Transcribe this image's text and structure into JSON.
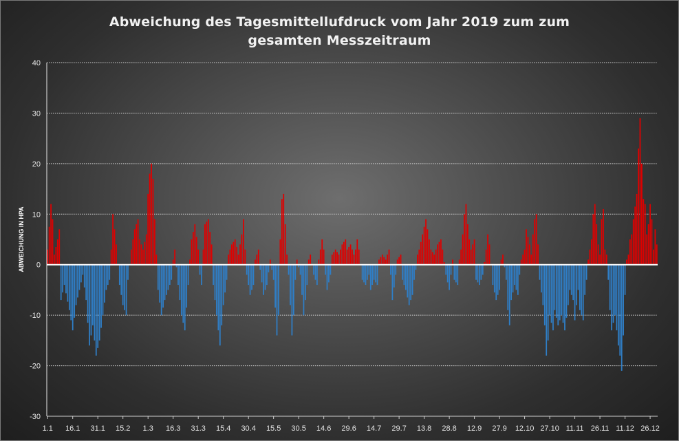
{
  "chart_data": {
    "type": "bar",
    "title": "Abweichung des Tagesmittellufdruck vom Jahr 2019 zum zum",
    "subtitle": "gesamten Messzeitraum",
    "xlabel": "",
    "ylabel": "ABWEICHUNG IN HPA",
    "ylim": [
      -30,
      40
    ],
    "yticks": [
      -30,
      -20,
      -10,
      0,
      10,
      20,
      30,
      40
    ],
    "grid": true,
    "legend": "none",
    "positive_color": "#e00000",
    "negative_color": "#2f7fc8",
    "x_ticks": [
      "1.1",
      "16.1",
      "31.1",
      "15.2",
      "1.3",
      "16.3",
      "31.3",
      "15.4",
      "30.4",
      "15.5",
      "30.5",
      "14.6",
      "29.6",
      "14.7",
      "29.7",
      "13.8",
      "28.8",
      "12.9",
      "27.9",
      "12.10",
      "27.10",
      "11.11",
      "26.11",
      "11.12",
      "26.12"
    ],
    "day_count": 365,
    "anchors": [
      [
        0,
        3
      ],
      [
        2,
        12
      ],
      [
        3,
        9
      ],
      [
        4,
        2
      ],
      [
        6,
        5
      ],
      [
        7,
        7
      ],
      [
        8,
        -7
      ],
      [
        10,
        -4
      ],
      [
        13,
        -9
      ],
      [
        15,
        -13
      ],
      [
        17,
        -8
      ],
      [
        19,
        -5
      ],
      [
        21,
        -2
      ],
      [
        23,
        -7
      ],
      [
        25,
        -16
      ],
      [
        27,
        -12
      ],
      [
        29,
        -18
      ],
      [
        31,
        -15
      ],
      [
        33,
        -10
      ],
      [
        35,
        -5
      ],
      [
        37,
        -3
      ],
      [
        38,
        3
      ],
      [
        39,
        10
      ],
      [
        41,
        4
      ],
      [
        43,
        -4
      ],
      [
        45,
        -8
      ],
      [
        47,
        -10
      ],
      [
        48,
        -3
      ],
      [
        50,
        3
      ],
      [
        52,
        7
      ],
      [
        54,
        9
      ],
      [
        55,
        5
      ],
      [
        57,
        3
      ],
      [
        59,
        6
      ],
      [
        60,
        14
      ],
      [
        61,
        18
      ],
      [
        62,
        20
      ],
      [
        63,
        17
      ],
      [
        64,
        9
      ],
      [
        65,
        2
      ],
      [
        66,
        -5
      ],
      [
        68,
        -10
      ],
      [
        70,
        -7
      ],
      [
        72,
        -5
      ],
      [
        74,
        -3
      ],
      [
        75,
        1
      ],
      [
        76,
        3
      ],
      [
        78,
        -4
      ],
      [
        80,
        -10
      ],
      [
        82,
        -13
      ],
      [
        84,
        -4
      ],
      [
        85,
        1
      ],
      [
        86,
        5
      ],
      [
        88,
        8
      ],
      [
        90,
        3
      ],
      [
        91,
        -2
      ],
      [
        92,
        -4
      ],
      [
        93,
        3
      ],
      [
        94,
        8
      ],
      [
        96,
        9
      ],
      [
        98,
        4
      ],
      [
        99,
        -4
      ],
      [
        101,
        -10
      ],
      [
        103,
        -16
      ],
      [
        105,
        -8
      ],
      [
        107,
        -3
      ],
      [
        108,
        2
      ],
      [
        110,
        4
      ],
      [
        112,
        5
      ],
      [
        114,
        2
      ],
      [
        116,
        6
      ],
      [
        117,
        9
      ],
      [
        118,
        3
      ],
      [
        119,
        -2
      ],
      [
        121,
        -6
      ],
      [
        123,
        -4
      ],
      [
        124,
        1
      ],
      [
        126,
        3
      ],
      [
        127,
        -1
      ],
      [
        129,
        -6
      ],
      [
        131,
        -4
      ],
      [
        133,
        1
      ],
      [
        135,
        -3
      ],
      [
        137,
        -14
      ],
      [
        138,
        -10
      ],
      [
        139,
        5
      ],
      [
        140,
        13
      ],
      [
        141,
        14
      ],
      [
        142,
        8
      ],
      [
        143,
        2
      ],
      [
        144,
        -2
      ],
      [
        145,
        -8
      ],
      [
        146,
        -14
      ],
      [
        147,
        -10
      ],
      [
        148,
        -3
      ],
      [
        149,
        1
      ],
      [
        151,
        -2
      ],
      [
        153,
        -10
      ],
      [
        155,
        -4
      ],
      [
        156,
        1
      ],
      [
        157,
        2
      ],
      [
        159,
        -2
      ],
      [
        161,
        -4
      ],
      [
        162,
        1
      ],
      [
        164,
        5
      ],
      [
        165,
        3
      ],
      [
        166,
        -2
      ],
      [
        167,
        -5
      ],
      [
        169,
        -2
      ],
      [
        170,
        2
      ],
      [
        172,
        3
      ],
      [
        174,
        2
      ],
      [
        176,
        4
      ],
      [
        178,
        5
      ],
      [
        179,
        3
      ],
      [
        181,
        4
      ],
      [
        183,
        2
      ],
      [
        184,
        3
      ],
      [
        185,
        5
      ],
      [
        186,
        3
      ],
      [
        188,
        -3
      ],
      [
        190,
        -4
      ],
      [
        192,
        -2
      ],
      [
        193,
        -5
      ],
      [
        195,
        -3
      ],
      [
        197,
        -4
      ],
      [
        198,
        1
      ],
      [
        200,
        2
      ],
      [
        202,
        1
      ],
      [
        204,
        3
      ],
      [
        206,
        -7
      ],
      [
        208,
        -2
      ],
      [
        209,
        1
      ],
      [
        211,
        2
      ],
      [
        212,
        -3
      ],
      [
        214,
        -5
      ],
      [
        216,
        -8
      ],
      [
        218,
        -6
      ],
      [
        219,
        -3
      ],
      [
        220,
        -1
      ],
      [
        221,
        2
      ],
      [
        222,
        3
      ],
      [
        224,
        6
      ],
      [
        226,
        9
      ],
      [
        227,
        7
      ],
      [
        228,
        5
      ],
      [
        229,
        3
      ],
      [
        231,
        2
      ],
      [
        233,
        4
      ],
      [
        235,
        5
      ],
      [
        236,
        3
      ],
      [
        238,
        -2
      ],
      [
        240,
        -5
      ],
      [
        241,
        -2
      ],
      [
        242,
        1
      ],
      [
        243,
        -3
      ],
      [
        245,
        -4
      ],
      [
        246,
        1
      ],
      [
        247,
        3
      ],
      [
        248,
        6
      ],
      [
        249,
        10
      ],
      [
        250,
        12
      ],
      [
        251,
        8
      ],
      [
        252,
        5
      ],
      [
        253,
        3
      ],
      [
        255,
        5
      ],
      [
        256,
        -3
      ],
      [
        258,
        -4
      ],
      [
        260,
        -2
      ],
      [
        262,
        3
      ],
      [
        263,
        6
      ],
      [
        264,
        4
      ],
      [
        266,
        -4
      ],
      [
        268,
        -7
      ],
      [
        270,
        -5
      ],
      [
        271,
        1
      ],
      [
        272,
        2
      ],
      [
        274,
        -3
      ],
      [
        275,
        -9
      ],
      [
        276,
        -12
      ],
      [
        277,
        -7
      ],
      [
        279,
        -4
      ],
      [
        281,
        -6
      ],
      [
        282,
        -2
      ],
      [
        283,
        1
      ],
      [
        285,
        3
      ],
      [
        286,
        7
      ],
      [
        288,
        4
      ],
      [
        289,
        2
      ],
      [
        290,
        6
      ],
      [
        291,
        9
      ],
      [
        292,
        10
      ],
      [
        293,
        4
      ],
      [
        294,
        -3
      ],
      [
        296,
        -8
      ],
      [
        297,
        -12
      ],
      [
        298,
        -18
      ],
      [
        299,
        -15
      ],
      [
        300,
        -10
      ],
      [
        302,
        -13
      ],
      [
        303,
        -9
      ],
      [
        305,
        -12
      ],
      [
        307,
        -10
      ],
      [
        309,
        -13
      ],
      [
        311,
        -8
      ],
      [
        312,
        -5
      ],
      [
        314,
        -7
      ],
      [
        315,
        -11
      ],
      [
        316,
        -8
      ],
      [
        317,
        -5
      ],
      [
        318,
        -9
      ],
      [
        320,
        -11
      ],
      [
        321,
        -6
      ],
      [
        322,
        -3
      ],
      [
        323,
        1
      ],
      [
        324,
        3
      ],
      [
        325,
        5
      ],
      [
        326,
        10
      ],
      [
        327,
        12
      ],
      [
        328,
        8
      ],
      [
        329,
        4
      ],
      [
        330,
        2
      ],
      [
        331,
        9
      ],
      [
        332,
        11
      ],
      [
        333,
        3
      ],
      [
        334,
        2
      ],
      [
        335,
        -3
      ],
      [
        336,
        -9
      ],
      [
        337,
        -13
      ],
      [
        339,
        -10
      ],
      [
        341,
        -16
      ],
      [
        342,
        -18
      ],
      [
        343,
        -21
      ],
      [
        344,
        -14
      ],
      [
        345,
        -6
      ],
      [
        346,
        1
      ],
      [
        347,
        2
      ],
      [
        348,
        5
      ],
      [
        349,
        6
      ],
      [
        350,
        9
      ],
      [
        352,
        14
      ],
      [
        353,
        23
      ],
      [
        354,
        29
      ],
      [
        355,
        20
      ],
      [
        356,
        13
      ],
      [
        357,
        12
      ],
      [
        358,
        6
      ],
      [
        359,
        8
      ],
      [
        360,
        12
      ],
      [
        361,
        9
      ],
      [
        362,
        3
      ],
      [
        363,
        7
      ],
      [
        364,
        4
      ]
    ]
  }
}
